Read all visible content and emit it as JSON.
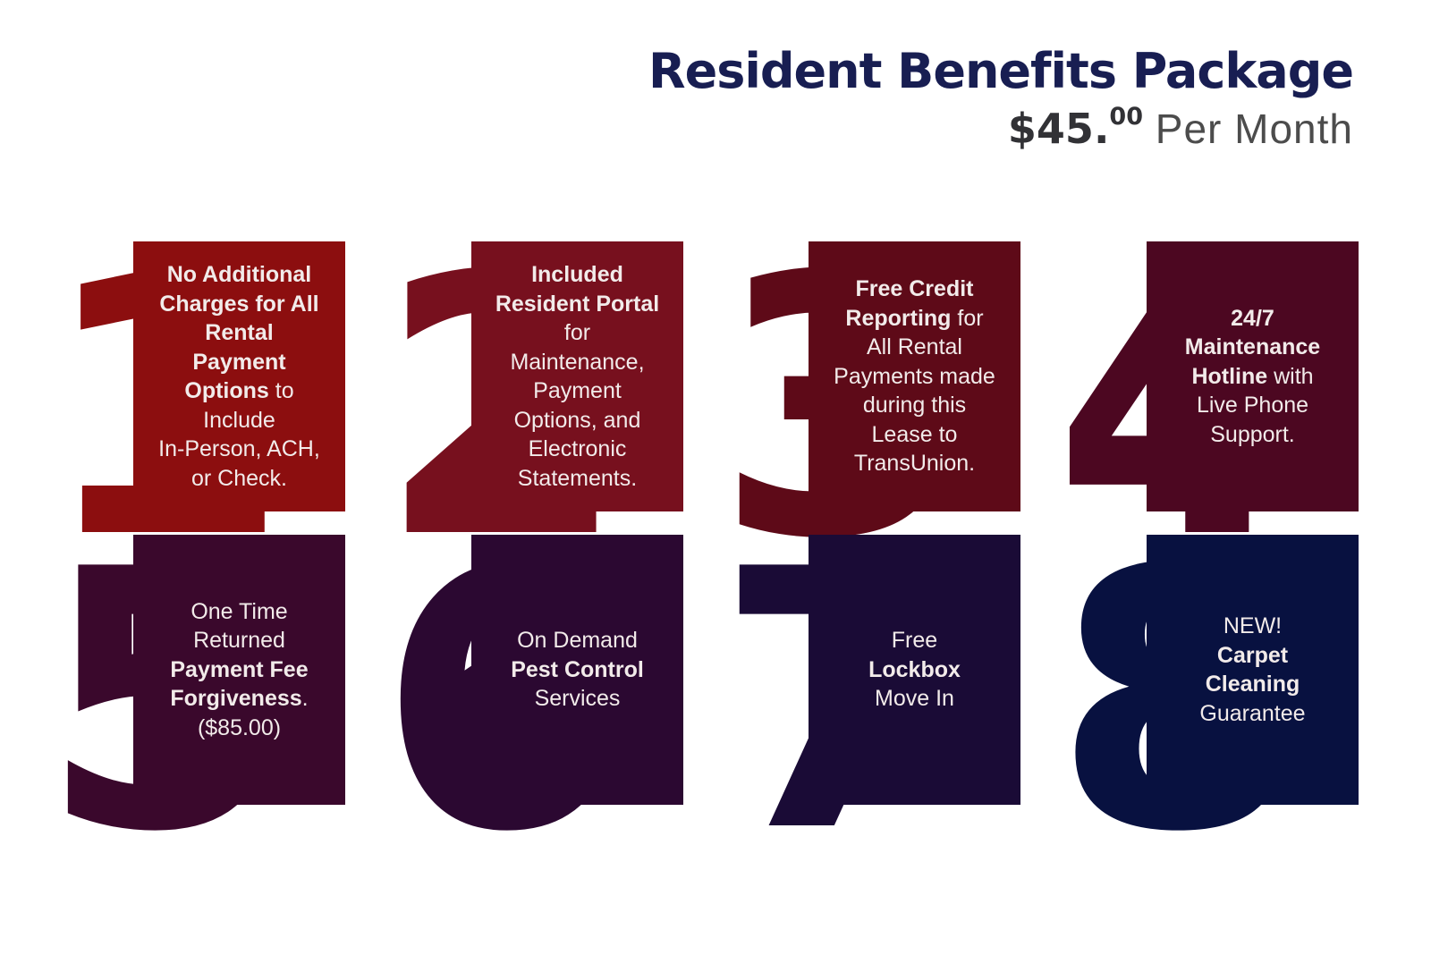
{
  "header": {
    "title": "Resident Benefits Package",
    "price_main": "$45.",
    "price_cents": "00",
    "price_period": " Per Month"
  },
  "colors": {
    "background": "#FFFFFF",
    "title": "#181E52",
    "price": "#323236",
    "period": "#4C4C4C",
    "card_text": "#F2EBEA"
  },
  "cards": [
    {
      "number": "1",
      "color": "#8C0E0F",
      "text_runs": [
        {
          "t": "No Additional\nCharges for All\nRental\nPayment\nOptions",
          "b": true
        },
        {
          "t": " to\nInclude\nIn-Person, ACH,\nor Check.",
          "b": false
        }
      ]
    },
    {
      "number": "2",
      "color": "#77101E",
      "text_runs": [
        {
          "t": "Included\nResident Portal",
          "b": true
        },
        {
          "t": "\nfor\nMaintenance,\nPayment\nOptions, and\nElectronic\nStatements.",
          "b": false
        }
      ]
    },
    {
      "number": "3",
      "color": "#5E0A18",
      "text_runs": [
        {
          "t": "Free Credit\nReporting",
          "b": true
        },
        {
          "t": " for\nAll Rental\nPayments made\nduring this\nLease to\nTransUnion.",
          "b": false
        }
      ]
    },
    {
      "number": "4",
      "color": "#4C0721",
      "text_runs": [
        {
          "t": "24/7\nMaintenance\nHotline",
          "b": true
        },
        {
          "t": " with\nLive Phone\nSupport.",
          "b": false
        }
      ]
    },
    {
      "number": "5",
      "color": "#3A082C",
      "text_runs": [
        {
          "t": "One Time\nReturned\n",
          "b": false
        },
        {
          "t": "Payment Fee\nForgiveness",
          "b": true
        },
        {
          "t": ".\n($85.00)",
          "b": false
        }
      ]
    },
    {
      "number": "6",
      "color": "#2B0831",
      "text_runs": [
        {
          "t": "On Demand\n",
          "b": false
        },
        {
          "t": "Pest Control",
          "b": true
        },
        {
          "t": "\nServices",
          "b": false
        }
      ]
    },
    {
      "number": "7",
      "color": "#1A0B36",
      "text_runs": [
        {
          "t": "Free\n",
          "b": false
        },
        {
          "t": "Lockbox",
          "b": true
        },
        {
          "t": "\nMove In",
          "b": false
        }
      ]
    },
    {
      "number": "8",
      "color": "#081140",
      "text_runs": [
        {
          "t": "NEW!\n",
          "b": false
        },
        {
          "t": "Carpet\nCleaning",
          "b": true
        },
        {
          "t": "\nGuarantee",
          "b": false
        }
      ]
    }
  ]
}
